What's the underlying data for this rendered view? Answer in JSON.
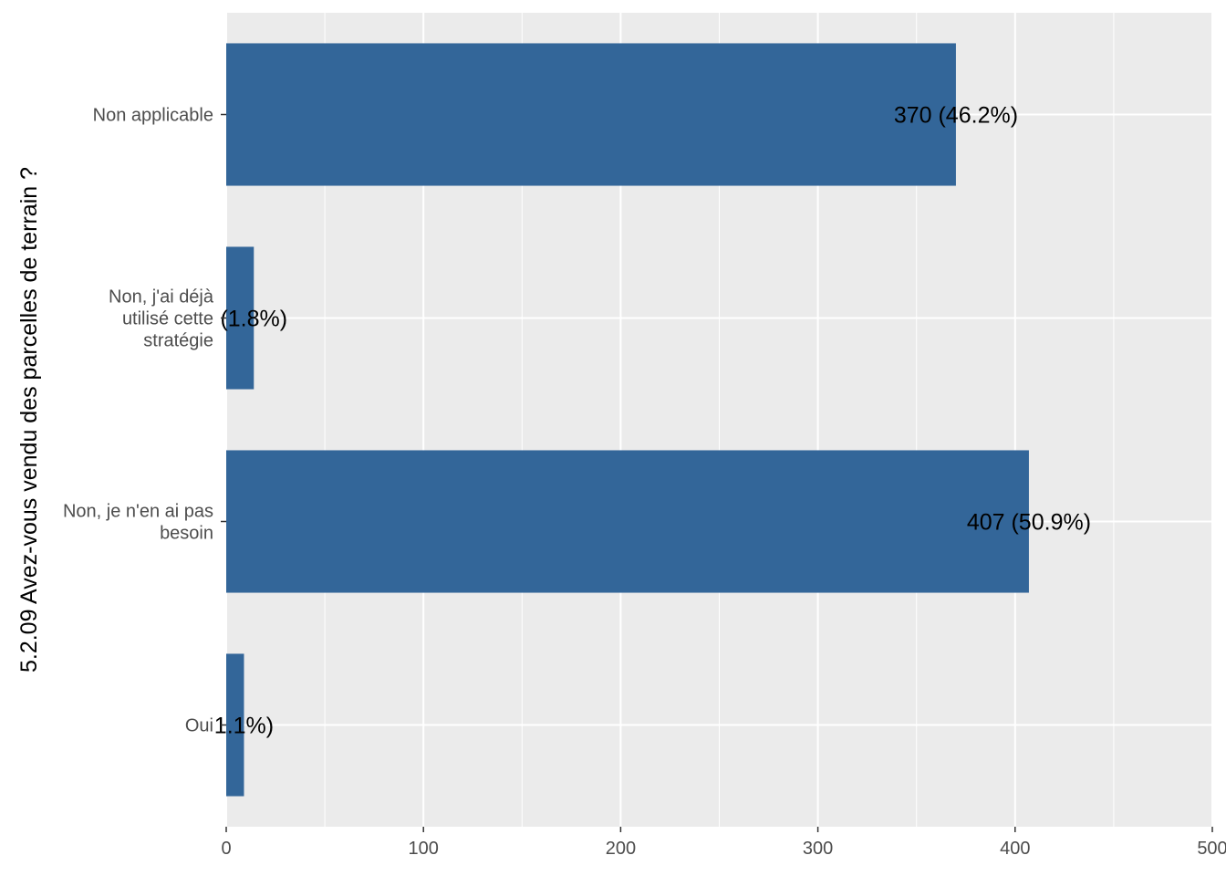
{
  "chart_data": {
    "type": "bar",
    "orientation": "horizontal",
    "categories": [
      "Non applicable",
      "Non, j'ai déjà utilisé cette stratégie",
      "Non, je n'en ai pas besoin",
      "Oui"
    ],
    "category_lines": [
      [
        "Non applicable"
      ],
      [
        "Non, j'ai déjà",
        "utilisé cette",
        "stratégie"
      ],
      [
        "Non, je n'en ai pas",
        "besoin"
      ],
      [
        "Oui"
      ]
    ],
    "values": [
      370,
      14,
      407,
      9
    ],
    "data_labels": [
      "370 (46.2%)",
      "(1.8%)",
      "407 (50.9%)",
      "1.1%)"
    ],
    "ylabel": "5.2.09 Avez-vous vendu des parcelles de terrain ?",
    "xlabel": "",
    "xlim": [
      0,
      500
    ],
    "x_ticks": [
      0,
      100,
      200,
      300,
      400,
      500
    ],
    "x_tick_labels": [
      "0",
      "100",
      "200",
      "300",
      "400",
      "500"
    ],
    "grid": true,
    "legend": "none",
    "colors": {
      "bar": "#336699",
      "panel": "#ebebeb",
      "grid": "#ffffff"
    }
  }
}
